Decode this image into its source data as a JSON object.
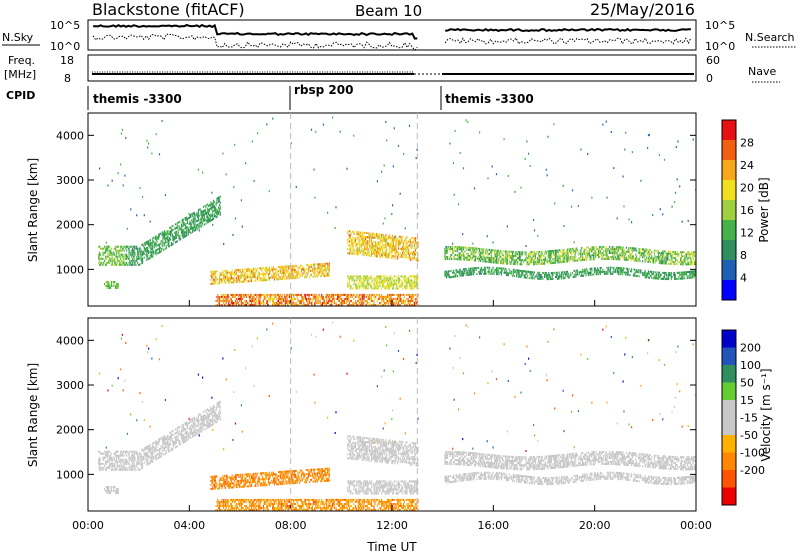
{
  "header": {
    "title": "Blackstone (fitACF)",
    "beam": "Beam 10",
    "date": "25/May/2016"
  },
  "noise_panel": {
    "left_label": "N.Sky",
    "left_ticks": [
      "10^5",
      "10^0"
    ],
    "right_ticks": [
      "10^5",
      "10^0"
    ],
    "right_label": "N.Search"
  },
  "freq_panel": {
    "left_label_1": "Freq.",
    "left_label_2": "[MHz]",
    "left_ticks": [
      "18",
      "8"
    ],
    "right_ticks": [
      "60",
      "0"
    ],
    "right_label": "Nave"
  },
  "cpid": {
    "label": "CPID",
    "segments": [
      "themis -3300",
      "rbsp 200",
      "themis -3300"
    ]
  },
  "colors": {
    "power": [
      "#0000ff",
      "#1f5fb4",
      "#2f8f5f",
      "#46b24a",
      "#9fd040",
      "#f0e020",
      "#f6a818",
      "#f06010",
      "#e81010"
    ],
    "velocity": [
      "#ee0000",
      "#ff5500",
      "#ff8800",
      "#ffb000",
      "#c8c8c8",
      "#c8c8c8",
      "#66cc33",
      "#2f8f5f",
      "#2255bb",
      "#0000cc"
    ]
  },
  "chart_data": [
    {
      "type": "heatmap",
      "name": "power",
      "ylabel": "Slant Range [km]",
      "yticks": [
        "1000",
        "2000",
        "3000",
        "4000"
      ],
      "ylim": [
        180,
        4500
      ],
      "xlim": [
        0,
        24
      ],
      "colorbar_label": "Power [dB]",
      "colorbar_ticks": [
        "4",
        "8",
        "12",
        "16",
        "20",
        "24",
        "28"
      ]
    },
    {
      "type": "heatmap",
      "name": "velocity",
      "ylabel": "Slant Range [km]",
      "yticks": [
        "1000",
        "2000",
        "3000",
        "4000"
      ],
      "ylim": [
        180,
        4500
      ],
      "xlim": [
        0,
        24
      ],
      "xlabel": "Time UT",
      "xticks": [
        "00:00",
        "04:00",
        "08:00",
        "12:00",
        "16:00",
        "20:00",
        "00:00"
      ],
      "colorbar_label": "Velocity [m s⁻¹]",
      "colorbar_ticks": [
        "200",
        "100",
        "50",
        "15",
        "-15",
        "-50",
        "-100",
        "-200"
      ]
    }
  ]
}
